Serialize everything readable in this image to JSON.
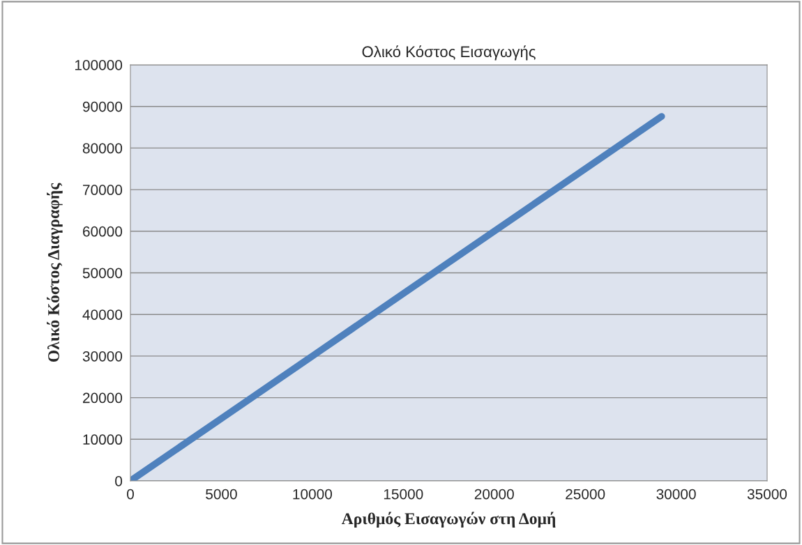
{
  "chart_data": {
    "type": "line",
    "title": "Ολικό Κόστος Εισαγωγής",
    "xlabel": "Αριθμός Εισαγωγών στη Δομή",
    "ylabel": "Ολικό Κόστος Διαγραφής",
    "x": [
      0,
      5000,
      10000,
      15000,
      20000,
      25000,
      29200
    ],
    "series": [
      {
        "color": "#4f81bd",
        "values": [
          0,
          15000,
          30000,
          45000,
          60000,
          75000,
          87600
        ]
      }
    ],
    "xlim": [
      0,
      35000
    ],
    "xticks": [
      0,
      5000,
      10000,
      15000,
      20000,
      25000,
      30000,
      35000
    ],
    "ylim": [
      0,
      100000
    ],
    "yticks": [
      0,
      10000,
      20000,
      30000,
      40000,
      50000,
      60000,
      70000,
      80000,
      90000,
      100000
    ],
    "grid": "y",
    "legend": false,
    "marker": "none",
    "line_style": "solid"
  }
}
